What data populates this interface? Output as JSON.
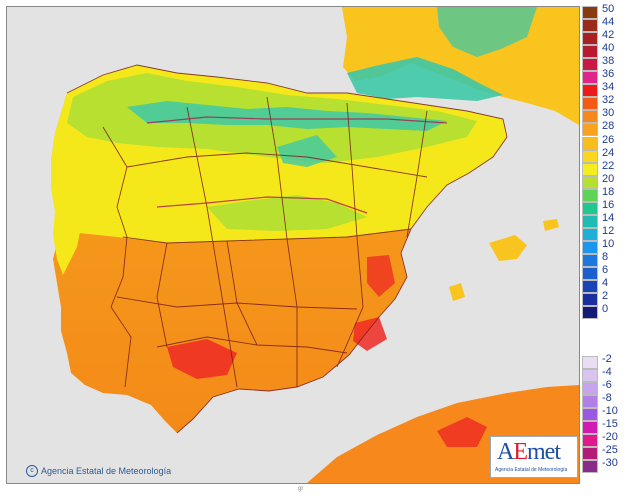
{
  "credit": {
    "icon": "copyright-icon",
    "text": "Agencia Estatal de Meteorología"
  },
  "logo": {
    "word_a": "A",
    "word_e": "E",
    "word_rest": "met",
    "subtitle": "Agencia Estatal de Meteorología"
  },
  "bottom_mark": "gr",
  "colors": {
    "sea": "#e3e3e3",
    "hot": "#f08a1c",
    "warm": "#f9c41e",
    "mild": "#f4e81a",
    "cool": "#b8e030",
    "cold": "#3ec8a6",
    "hottest": "#ee2a24",
    "border": "#7a1c1c"
  },
  "legend": {
    "positive": [
      {
        "label": "50",
        "color": "#8a3a10"
      },
      {
        "label": "44",
        "color": "#9a2a1a"
      },
      {
        "label": "42",
        "color": "#a82022"
      },
      {
        "label": "40",
        "color": "#b81a30"
      },
      {
        "label": "38",
        "color": "#c81a44"
      },
      {
        "label": "36",
        "color": "#e0248a"
      },
      {
        "label": "34",
        "color": "#ee1a1a"
      },
      {
        "label": "32",
        "color": "#f55a12"
      },
      {
        "label": "30",
        "color": "#f7881c"
      },
      {
        "label": "28",
        "color": "#f9a21e"
      },
      {
        "label": "26",
        "color": "#fbbc1e"
      },
      {
        "label": "24",
        "color": "#fbd61e"
      },
      {
        "label": "22",
        "color": "#f4ee1e"
      },
      {
        "label": "20",
        "color": "#b6e030"
      },
      {
        "label": "18",
        "color": "#5cd456"
      },
      {
        "label": "16",
        "color": "#1ec88e"
      },
      {
        "label": "14",
        "color": "#1ebcb2"
      },
      {
        "label": "12",
        "color": "#1eb0d6"
      },
      {
        "label": "10",
        "color": "#1a96ec"
      },
      {
        "label": "8",
        "color": "#1a78e0"
      },
      {
        "label": "6",
        "color": "#1a5ed0"
      },
      {
        "label": "4",
        "color": "#1a44b8"
      },
      {
        "label": "2",
        "color": "#1a2ea0"
      },
      {
        "label": "0",
        "color": "#141a78"
      }
    ],
    "negative": [
      {
        "label": "-2",
        "color": "#e8ddf4"
      },
      {
        "label": "-4",
        "color": "#d8c4ee"
      },
      {
        "label": "-6",
        "color": "#c6a6ea"
      },
      {
        "label": "-8",
        "color": "#b080e6"
      },
      {
        "label": "-10",
        "color": "#9c58e0"
      },
      {
        "label": "-15",
        "color": "#d21ab2"
      },
      {
        "label": "-20",
        "color": "#e01a8a"
      },
      {
        "label": "-25",
        "color": "#b41a78"
      },
      {
        "label": "-30",
        "color": "#8a2a8a"
      }
    ]
  }
}
